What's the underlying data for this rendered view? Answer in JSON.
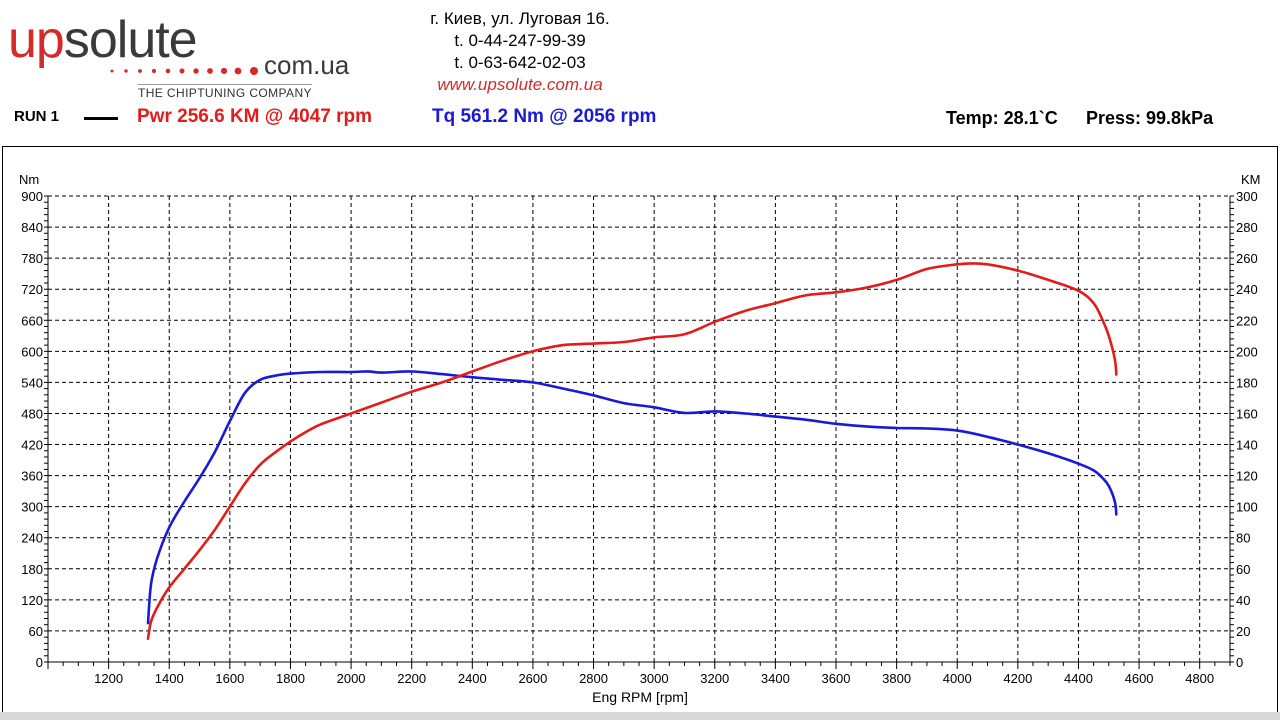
{
  "header": {
    "logo_up": "up",
    "logo_solute": "solute",
    "logo_domain": "com.ua",
    "logo_tagline": "THE CHIPTUNING COMPANY",
    "address": "г. Киев, ул. Луговая 16.",
    "phone1": "t. 0-44-247-99-39",
    "phone2": "t. 0-63-642-02-03",
    "website": "www.upsolute.com.ua"
  },
  "run": {
    "label": "RUN 1",
    "power": "Pwr  256.6 KM @ 4047 rpm",
    "torque": "Tq 561.2 Nm @ 2056 rpm",
    "temp": "Temp: 28.1`C",
    "press": "Press: 99.8kPa"
  },
  "colors": {
    "power": "#e41b1b",
    "torque": "#1a1ad6",
    "logo_red": "#d42a2a",
    "logo_gray": "#3a3a3a"
  },
  "chart_data": {
    "type": "line",
    "title": "",
    "xlabel": "Eng RPM [rpm]",
    "ylabel": "Nm",
    "y2label": "KM",
    "xlim": [
      1000,
      4900
    ],
    "ylim": [
      0,
      900
    ],
    "y2lim": [
      0,
      300
    ],
    "x_ticks": [
      1200,
      1400,
      1600,
      1800,
      2000,
      2200,
      2400,
      2600,
      2800,
      3000,
      3200,
      3400,
      3600,
      3800,
      4000,
      4200,
      4400,
      4600,
      4800
    ],
    "y_ticks": [
      0,
      60,
      120,
      180,
      240,
      300,
      360,
      420,
      480,
      540,
      600,
      660,
      720,
      780,
      840,
      900
    ],
    "y2_ticks": [
      0,
      20,
      40,
      60,
      80,
      100,
      120,
      140,
      160,
      180,
      200,
      220,
      240,
      260,
      280,
      300
    ],
    "grid": true,
    "series": [
      {
        "name": "Pwr",
        "axis": "right",
        "x": [
          1330,
          1340,
          1360,
          1400,
          1450,
          1500,
          1550,
          1600,
          1650,
          1700,
          1750,
          1800,
          1850,
          1900,
          2000,
          2100,
          2200,
          2300,
          2400,
          2500,
          2600,
          2700,
          2800,
          2900,
          3000,
          3100,
          3200,
          3300,
          3400,
          3500,
          3600,
          3700,
          3800,
          3900,
          4000,
          4047,
          4100,
          4200,
          4300,
          4400,
          4450,
          4480,
          4500,
          4520,
          4525
        ],
        "values": [
          15,
          26,
          35,
          48,
          60,
          72,
          85,
          100,
          115,
          127,
          135,
          142,
          148,
          153,
          160,
          167,
          174,
          180,
          187,
          194,
          200,
          204,
          205,
          206,
          209,
          211,
          219,
          226,
          231,
          236,
          238,
          241,
          246,
          253,
          256,
          256.6,
          256,
          252,
          246,
          239,
          231,
          220,
          210,
          195,
          185
        ]
      },
      {
        "name": "Tq",
        "axis": "left",
        "x": [
          1330,
          1340,
          1360,
          1400,
          1450,
          1500,
          1550,
          1600,
          1650,
          1700,
          1750,
          1800,
          1900,
          2000,
          2056,
          2100,
          2200,
          2300,
          2400,
          2500,
          2600,
          2700,
          2800,
          2900,
          3000,
          3100,
          3200,
          3300,
          3400,
          3500,
          3600,
          3700,
          3800,
          3900,
          4000,
          4100,
          4200,
          4300,
          4400,
          4450,
          4480,
          4500,
          4520,
          4525
        ],
        "values": [
          75,
          150,
          200,
          260,
          310,
          355,
          405,
          465,
          520,
          545,
          553,
          557,
          560,
          560,
          561.2,
          559,
          561,
          556,
          550,
          545,
          540,
          528,
          515,
          500,
          492,
          481,
          484,
          480,
          474,
          468,
          460,
          455,
          452,
          451,
          447,
          435,
          420,
          403,
          383,
          370,
          355,
          340,
          310,
          285
        ]
      }
    ]
  }
}
